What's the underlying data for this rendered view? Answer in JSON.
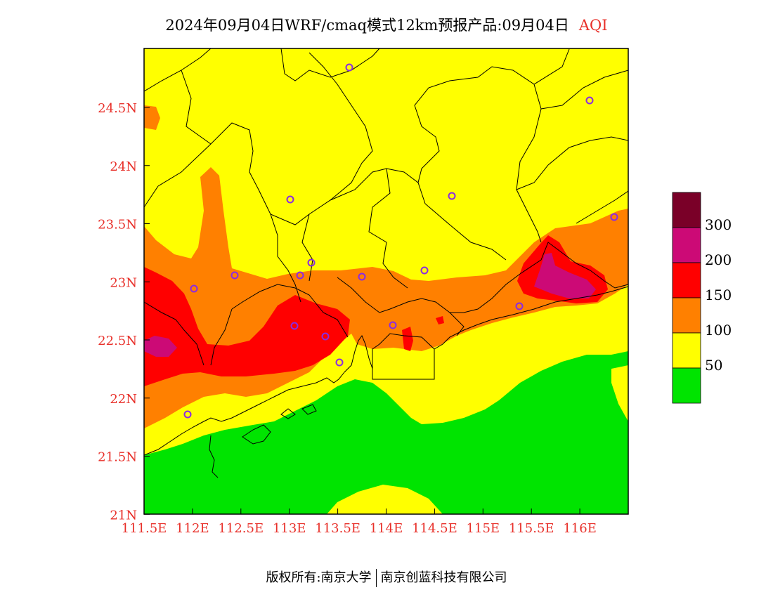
{
  "title": {
    "main": "2024年09月04日WRF/cmaq模式12km预报产品:09月04日",
    "pollutant": "AQI"
  },
  "axes": {
    "x_ticks": [
      "111.5E",
      "112E",
      "112.5E",
      "113E",
      "113.5E",
      "114E",
      "114.5E",
      "115E",
      "115.5E",
      "116E"
    ],
    "y_ticks": [
      "24.5N",
      "24N",
      "23.5N",
      "23N",
      "22.5N",
      "22N",
      "21.5N",
      "21N"
    ]
  },
  "legend": {
    "labels": [
      "300",
      "200",
      "150",
      "100",
      "50"
    ],
    "colors": [
      "#7a0028",
      "#cc0a76",
      "#ff0000",
      "#ff8000",
      "#ffff00",
      "#00e400"
    ]
  },
  "map_colors": {
    "good": "#00e400",
    "moderate": "#ffff00",
    "unhealthy_sensitive": "#ff8000",
    "unhealthy": "#ff0000",
    "very_unhealthy": "#cc0a76",
    "station_marker": "#8b2be2"
  },
  "footer": {
    "left": "版权所有:南京大学",
    "right": "南京创蓝科技有限公司"
  }
}
